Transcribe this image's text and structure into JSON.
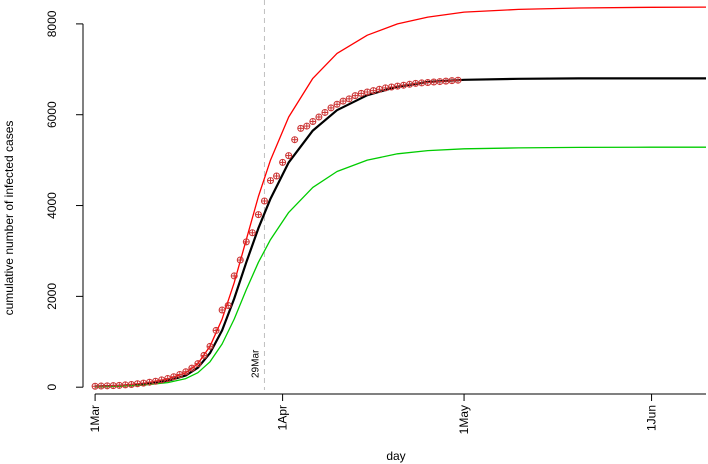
{
  "chart_data": {
    "type": "line",
    "xlabel": "day",
    "ylabel": "cumulative number of infected cases",
    "x_axis": {
      "range": [
        "2020-02-28",
        "2020-06-10"
      ],
      "ticks": [
        {
          "label": "1Mar",
          "date": "2020-03-01"
        },
        {
          "label": "1Apr",
          "date": "2020-04-01"
        },
        {
          "label": "1May",
          "date": "2020-05-01"
        },
        {
          "label": "1Jun",
          "date": "2020-06-01"
        }
      ]
    },
    "y_axis": {
      "range": [
        -150,
        8350
      ],
      "ticks": [
        0,
        2000,
        4000,
        6000,
        8000
      ]
    },
    "grid": false,
    "legend": "none",
    "vertical_marker": {
      "date": "2020-03-29",
      "label": "29Mar",
      "color": "#bfbfbf"
    },
    "series": [
      {
        "color": "#ff0000",
        "line": true,
        "points": [
          [
            "2020-03-01",
            20
          ],
          [
            "2020-03-05",
            40
          ],
          [
            "2020-03-09",
            85
          ],
          [
            "2020-03-13",
            180
          ],
          [
            "2020-03-16",
            320
          ],
          [
            "2020-03-18",
            520
          ],
          [
            "2020-03-20",
            900
          ],
          [
            "2020-03-22",
            1500
          ],
          [
            "2020-03-24",
            2300
          ],
          [
            "2020-03-26",
            3250
          ],
          [
            "2020-03-28",
            4200
          ],
          [
            "2020-03-30",
            5000
          ],
          [
            "2020-04-02",
            5950
          ],
          [
            "2020-04-06",
            6800
          ],
          [
            "2020-04-10",
            7350
          ],
          [
            "2020-04-15",
            7750
          ],
          [
            "2020-04-20",
            8000
          ],
          [
            "2020-04-25",
            8150
          ],
          [
            "2020-05-01",
            8260
          ],
          [
            "2020-05-10",
            8320
          ],
          [
            "2020-05-20",
            8350
          ],
          [
            "2020-06-01",
            8365
          ],
          [
            "2020-06-10",
            8370
          ]
        ]
      },
      {
        "color": "#000000",
        "line": true,
        "points": [
          [
            "2020-03-01",
            15
          ],
          [
            "2020-03-05",
            30
          ],
          [
            "2020-03-09",
            60
          ],
          [
            "2020-03-13",
            140
          ],
          [
            "2020-03-16",
            260
          ],
          [
            "2020-03-18",
            430
          ],
          [
            "2020-03-20",
            750
          ],
          [
            "2020-03-22",
            1250
          ],
          [
            "2020-03-24",
            1950
          ],
          [
            "2020-03-26",
            2750
          ],
          [
            "2020-03-28",
            3500
          ],
          [
            "2020-03-30",
            4150
          ],
          [
            "2020-04-02",
            4950
          ],
          [
            "2020-04-06",
            5650
          ],
          [
            "2020-04-10",
            6100
          ],
          [
            "2020-04-15",
            6430
          ],
          [
            "2020-04-20",
            6620
          ],
          [
            "2020-04-25",
            6720
          ],
          [
            "2020-05-01",
            6770
          ],
          [
            "2020-05-10",
            6790
          ],
          [
            "2020-05-20",
            6800
          ],
          [
            "2020-06-01",
            6800
          ],
          [
            "2020-06-10",
            6800
          ]
        ]
      },
      {
        "color": "#00cc00",
        "line": true,
        "points": [
          [
            "2020-03-01",
            10
          ],
          [
            "2020-03-05",
            22
          ],
          [
            "2020-03-09",
            45
          ],
          [
            "2020-03-13",
            100
          ],
          [
            "2020-03-16",
            190
          ],
          [
            "2020-03-18",
            320
          ],
          [
            "2020-03-20",
            560
          ],
          [
            "2020-03-22",
            950
          ],
          [
            "2020-03-24",
            1500
          ],
          [
            "2020-03-26",
            2150
          ],
          [
            "2020-03-28",
            2750
          ],
          [
            "2020-03-30",
            3250
          ],
          [
            "2020-04-02",
            3850
          ],
          [
            "2020-04-06",
            4400
          ],
          [
            "2020-04-10",
            4750
          ],
          [
            "2020-04-15",
            5000
          ],
          [
            "2020-04-20",
            5140
          ],
          [
            "2020-04-25",
            5210
          ],
          [
            "2020-05-01",
            5250
          ],
          [
            "2020-05-10",
            5270
          ],
          [
            "2020-05-20",
            5280
          ],
          [
            "2020-06-01",
            5285
          ],
          [
            "2020-06-10",
            5285
          ]
        ]
      },
      {
        "color": "#cc3333",
        "line": false,
        "marker": "cross-circle",
        "points": [
          [
            "2020-03-01",
            20
          ],
          [
            "2020-03-02",
            25
          ],
          [
            "2020-03-03",
            30
          ],
          [
            "2020-03-04",
            35
          ],
          [
            "2020-03-05",
            40
          ],
          [
            "2020-03-06",
            50
          ],
          [
            "2020-03-07",
            60
          ],
          [
            "2020-03-08",
            75
          ],
          [
            "2020-03-09",
            90
          ],
          [
            "2020-03-10",
            110
          ],
          [
            "2020-03-11",
            130
          ],
          [
            "2020-03-12",
            160
          ],
          [
            "2020-03-13",
            190
          ],
          [
            "2020-03-14",
            230
          ],
          [
            "2020-03-15",
            280
          ],
          [
            "2020-03-16",
            340
          ],
          [
            "2020-03-17",
            420
          ],
          [
            "2020-03-18",
            520
          ],
          [
            "2020-03-19",
            700
          ],
          [
            "2020-03-20",
            900
          ],
          [
            "2020-03-21",
            1250
          ],
          [
            "2020-03-22",
            1700
          ],
          [
            "2020-03-23",
            1800
          ],
          [
            "2020-03-24",
            2450
          ],
          [
            "2020-03-25",
            2800
          ],
          [
            "2020-03-26",
            3200
          ],
          [
            "2020-03-27",
            3400
          ],
          [
            "2020-03-28",
            3800
          ],
          [
            "2020-03-29",
            4100
          ],
          [
            "2020-03-30",
            4550
          ],
          [
            "2020-03-31",
            4650
          ],
          [
            "2020-04-01",
            4950
          ],
          [
            "2020-04-02",
            5100
          ],
          [
            "2020-04-03",
            5450
          ],
          [
            "2020-04-04",
            5700
          ],
          [
            "2020-04-05",
            5750
          ],
          [
            "2020-04-06",
            5850
          ],
          [
            "2020-04-07",
            5950
          ],
          [
            "2020-04-08",
            6050
          ],
          [
            "2020-04-09",
            6150
          ],
          [
            "2020-04-10",
            6230
          ],
          [
            "2020-04-11",
            6300
          ],
          [
            "2020-04-12",
            6350
          ],
          [
            "2020-04-13",
            6420
          ],
          [
            "2020-04-14",
            6470
          ],
          [
            "2020-04-15",
            6500
          ],
          [
            "2020-04-16",
            6530
          ],
          [
            "2020-04-17",
            6560
          ],
          [
            "2020-04-18",
            6590
          ],
          [
            "2020-04-19",
            6610
          ],
          [
            "2020-04-20",
            6630
          ],
          [
            "2020-04-21",
            6650
          ],
          [
            "2020-04-22",
            6670
          ],
          [
            "2020-04-23",
            6690
          ],
          [
            "2020-04-24",
            6700
          ],
          [
            "2020-04-25",
            6710
          ],
          [
            "2020-04-26",
            6720
          ],
          [
            "2020-04-27",
            6730
          ],
          [
            "2020-04-28",
            6740
          ],
          [
            "2020-04-29",
            6750
          ],
          [
            "2020-04-30",
            6760
          ]
        ]
      }
    ]
  }
}
